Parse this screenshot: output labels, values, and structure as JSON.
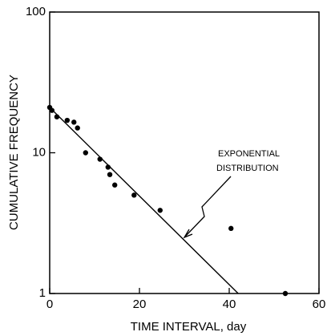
{
  "chart_data": {
    "type": "scatter",
    "xlabel": "TIME INTERVAL, day",
    "ylabel": "CUMULATIVE FREQUENCY",
    "annotation": [
      "EXPONENTIAL",
      "DISTRIBUTION"
    ],
    "x": [
      0,
      0.5,
      1.6,
      3.9,
      5.4,
      6.2,
      8,
      11.2,
      13,
      13.4,
      14.5,
      18.8,
      24.6,
      40.4,
      52.5
    ],
    "y": [
      21,
      20,
      18,
      17,
      16.5,
      15,
      10,
      9,
      7.9,
      7,
      5.9,
      5,
      3.9,
      2.9,
      1
    ],
    "fit": {
      "type": "line",
      "x": [
        0,
        42
      ],
      "y": [
        21,
        1
      ]
    },
    "color": "#000000",
    "xlim": [
      0,
      60
    ],
    "xticks": [
      0,
      20,
      40,
      60
    ],
    "ylim": [
      1,
      100
    ],
    "yticks": [
      1,
      10,
      100
    ],
    "log_y": true
  }
}
